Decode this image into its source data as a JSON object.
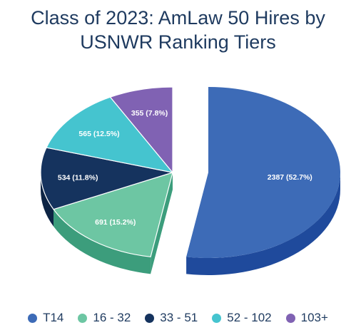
{
  "title_line1": "Class of 2023: AmLaw 50 Hires by",
  "title_line2": "USNWR Ranking Tiers",
  "chart_data": {
    "type": "pie",
    "title": "Class of 2023: AmLaw 50 Hires by USNWR Ranking Tiers",
    "exploded": "T14",
    "legend_position": "bottom",
    "slices": [
      {
        "name": "T14",
        "value": 2387,
        "percent": 52.7,
        "label": "2387 (52.7%)",
        "color": "#3d6bb7",
        "side_color": "#1f4a9c"
      },
      {
        "name": "16 - 32",
        "value": 691,
        "percent": 15.2,
        "label": "691 (15.2%)",
        "color": "#6dc6a3",
        "side_color": "#3c9d7c"
      },
      {
        "name": "33 - 51",
        "value": 534,
        "percent": 11.8,
        "label": "534 (11.8%)",
        "color": "#15335e",
        "side_color": "#0d2444"
      },
      {
        "name": "52 - 102",
        "value": 565,
        "percent": 12.5,
        "label": "565 (12.5%)",
        "color": "#45c4cf",
        "side_color": "#2a9aa4"
      },
      {
        "name": "103+",
        "value": 355,
        "percent": 7.8,
        "label": "355 (7.8%)",
        "color": "#8062b3",
        "side_color": "#5e4591"
      }
    ]
  }
}
